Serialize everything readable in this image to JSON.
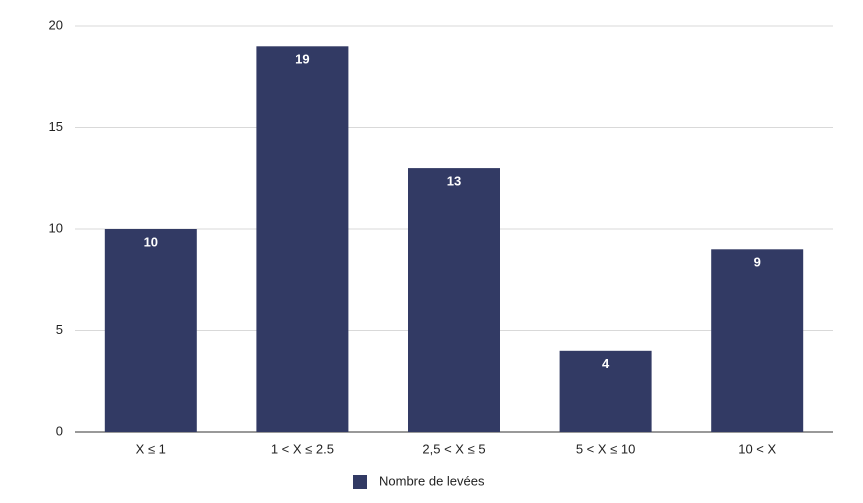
{
  "chart_data": {
    "type": "bar",
    "categories": [
      "X ≤ 1",
      "1 < X ≤ 2.5",
      "2,5 < X ≤ 5",
      "5 < X ≤ 10",
      "10 < X"
    ],
    "series": [
      {
        "name": "Nombre de levées",
        "color": "#323a64",
        "values": [
          10,
          19,
          13,
          4,
          9
        ]
      }
    ],
    "ylim": [
      0,
      20
    ],
    "yticks": [
      0,
      5,
      10,
      15,
      20
    ],
    "grid": true,
    "legend": "bottom"
  }
}
